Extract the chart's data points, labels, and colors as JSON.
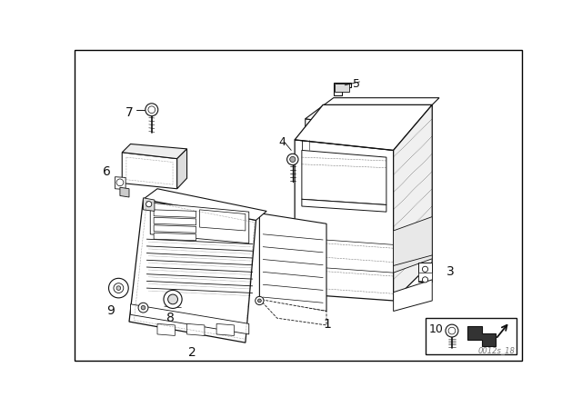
{
  "bg_color": "#ffffff",
  "line_color": "#111111",
  "watermark": "0012s_18",
  "border_color": "#000000"
}
